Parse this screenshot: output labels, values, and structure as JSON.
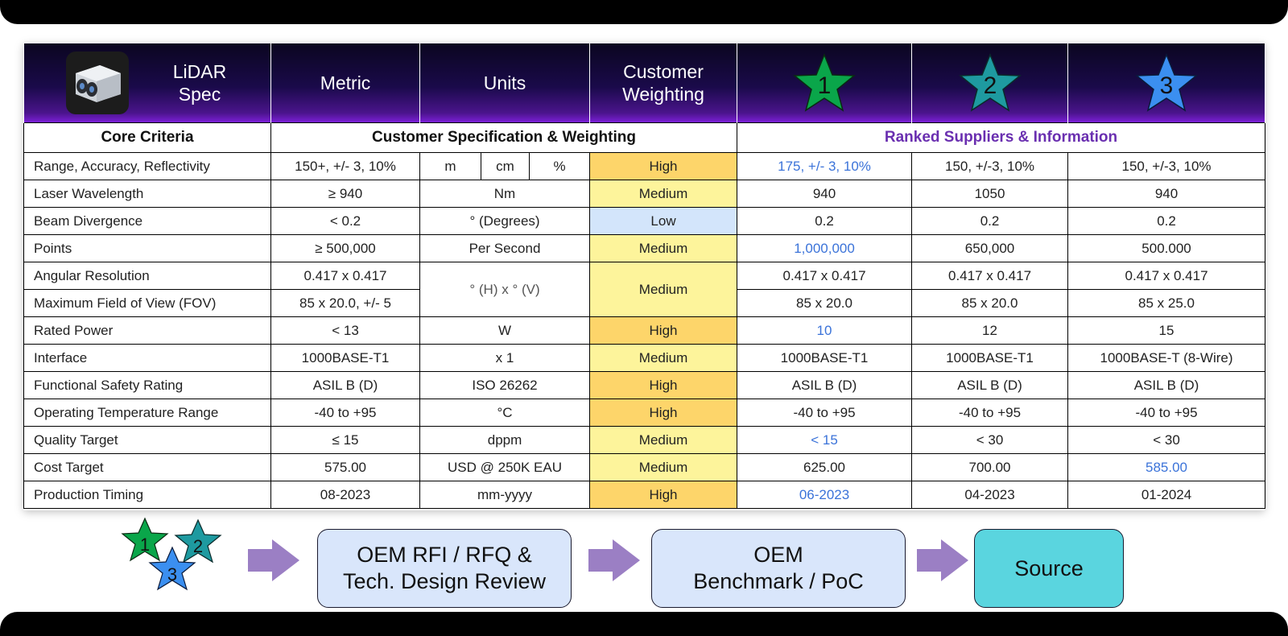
{
  "header": {
    "title_line1": "LiDAR",
    "title_line2": "Spec",
    "metric": "Metric",
    "units": "Units",
    "weighting_line1": "Customer",
    "weighting_line2": "Weighting",
    "suppliers": [
      "1",
      "2",
      "3"
    ],
    "lidar_icon": "lidar-sensor-icon",
    "star_colors": [
      "#0aa64a",
      "#1e9aa0",
      "#3b8ff0"
    ]
  },
  "sections": {
    "core": "Core Criteria",
    "customer": "Customer Specification & Weighting",
    "ranked": "Ranked Suppliers & Information"
  },
  "rows": [
    {
      "criteria": "Range, Accuracy, Reflectivity",
      "metric": "150+, +/- 3, 10%",
      "units": [
        "m",
        "cm",
        "%"
      ],
      "weight": "High",
      "s1": "175, +/- 3, 10%",
      "s2": "150, +/-3, 10%",
      "s3": "150, +/-3, 10%"
    },
    {
      "criteria": "Laser Wavelength",
      "metric": "≥ 940",
      "units": "Nm",
      "weight": "Medium",
      "s1": "940",
      "s2": "1050",
      "s3": "940"
    },
    {
      "criteria": "Beam Divergence",
      "metric": "< 0.2",
      "units": "° (Degrees)",
      "weight": "Low",
      "s1": "0.2",
      "s2": "0.2",
      "s3": "0.2"
    },
    {
      "criteria": "Points",
      "metric": "≥ 500,000",
      "units": "Per Second",
      "weight": "Medium",
      "s1": "1,000,000",
      "s2": "650,000",
      "s3": "500.000"
    },
    {
      "criteria": "Angular Resolution",
      "metric": "0.417 x 0.417",
      "units": "° (H) x ° (V)",
      "weight": "Medium",
      "s1": "0.417 x 0.417",
      "s2": "0.417 x 0.417",
      "s3": "0.417 x 0.417"
    },
    {
      "criteria": "Maximum Field of View (FOV)",
      "metric": "85 x 20.0, +/- 5",
      "s1": "85 x 20.0",
      "s2": "85 x 20.0",
      "s3": "85 x 25.0"
    },
    {
      "criteria": "Rated Power",
      "metric": "< 13",
      "units": "W",
      "weight": "High",
      "s1": "10",
      "s2": "12",
      "s3": "15"
    },
    {
      "criteria": "Interface",
      "metric": "1000BASE-T1",
      "units": "x 1",
      "weight": "Medium",
      "s1": "1000BASE-T1",
      "s2": "1000BASE-T1",
      "s3": "1000BASE-T (8-Wire)"
    },
    {
      "criteria": "Functional Safety Rating",
      "metric": "ASIL B (D)",
      "units": "ISO 26262",
      "weight": "High",
      "s1": "ASIL B (D)",
      "s2": "ASIL B (D)",
      "s3": "ASIL B (D)"
    },
    {
      "criteria": "Operating Temperature Range",
      "metric": "-40 to +95",
      "units": "°C",
      "weight": "High",
      "s1": "-40 to +95",
      "s2": "-40 to +95",
      "s3": "-40 to +95"
    },
    {
      "criteria": "Quality Target",
      "metric": "≤ 15",
      "units": "dppm",
      "weight": "Medium",
      "s1": "< 15",
      "s2": "< 30",
      "s3": "< 30"
    },
    {
      "criteria": "Cost Target",
      "metric": "575.00",
      "units": "USD @ 250K EAU",
      "weight": "Medium",
      "s1": "625.00",
      "s2": "700.00",
      "s3": "585.00"
    },
    {
      "criteria": "Production Timing",
      "metric": "08-2023",
      "units": "mm-yyyy",
      "weight": "High",
      "s1": "06-2023",
      "s2": "04-2023",
      "s3": "01-2024"
    }
  ],
  "weight_colors": {
    "High": "#fdd56a",
    "Medium": "#fdf49b",
    "Low": "#d3e5fb"
  },
  "highlight_color": "#3b73d9",
  "flow": {
    "stars": [
      "1",
      "2",
      "3"
    ],
    "step1_line1": "OEM RFI / RFQ &",
    "step1_line2": "Tech. Design Review",
    "step2_line1": "OEM",
    "step2_line2": "Benchmark / PoC",
    "step3": "Source",
    "arrow_color": "#9b7fc4",
    "step_color": "#d9e6fb",
    "source_color": "#5ad5df"
  }
}
